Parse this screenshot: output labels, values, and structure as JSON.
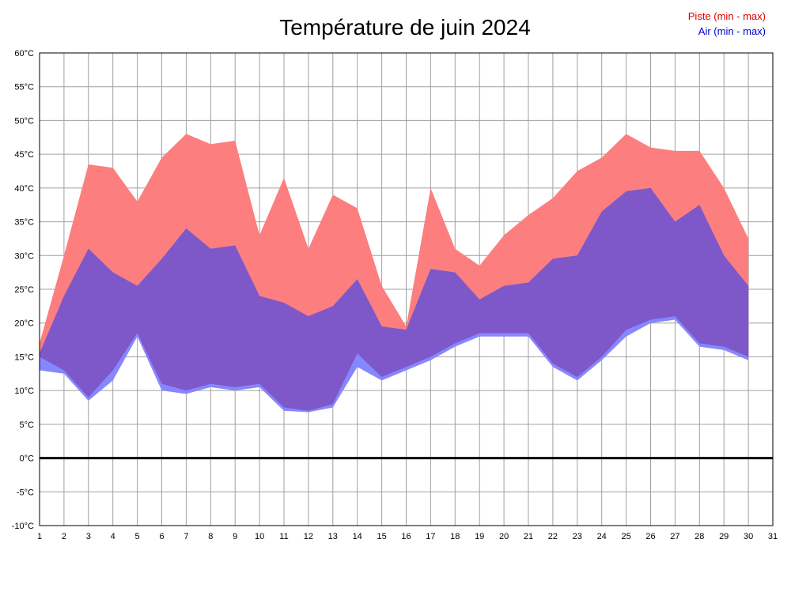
{
  "title": "Température de juin 2024",
  "legend": {
    "piste_label": "Piste (min - max)",
    "air_label": "Air (min - max)",
    "piste_text_color": "#dd0000",
    "air_text_color": "#0000cc"
  },
  "colors": {
    "piste_fill": "#fc7e7e",
    "air_fill": "#8686ff",
    "overlap_fill": "#7e57c8",
    "grid": "#a0a0a0",
    "border": "#000000",
    "zero_line": "#000000",
    "axis_text": "#000000",
    "background": "#ffffff"
  },
  "chart_data": {
    "type": "area",
    "title": "Température de juin 2024",
    "grid": true,
    "legend_position": "top-right",
    "xlim": [
      1,
      31
    ],
    "ylim": [
      -10,
      60
    ],
    "x": [
      1,
      2,
      3,
      4,
      5,
      6,
      7,
      8,
      9,
      10,
      11,
      12,
      13,
      14,
      15,
      16,
      17,
      18,
      19,
      20,
      21,
      22,
      23,
      24,
      25,
      26,
      27,
      28,
      29,
      30
    ],
    "x_ticks": [
      "1",
      "2",
      "3",
      "4",
      "5",
      "6",
      "7",
      "8",
      "9",
      "10",
      "11",
      "12",
      "13",
      "14",
      "15",
      "16",
      "17",
      "18",
      "19",
      "20",
      "21",
      "22",
      "23",
      "24",
      "25",
      "26",
      "27",
      "28",
      "29",
      "30",
      "31"
    ],
    "y_ticks": [
      "60°C",
      "55°C",
      "50°C",
      "45°C",
      "40°C",
      "35°C",
      "30°C",
      "25°C",
      "20°C",
      "15°C",
      "10°C",
      "5°C",
      "0°C",
      "-5°C",
      "-10°C"
    ],
    "series": [
      {
        "name": "Piste max",
        "values": [
          17,
          30,
          43.5,
          43,
          38,
          44.5,
          48,
          46.5,
          47,
          33,
          41.5,
          31,
          39,
          37,
          25.5,
          19.5,
          40,
          31,
          28.5,
          33,
          36,
          38.5,
          42.5,
          44.5,
          48,
          46,
          45.5,
          45.5,
          40,
          32.5
        ]
      },
      {
        "name": "Piste min",
        "values": [
          15,
          13,
          9,
          13,
          18.5,
          11,
          10,
          11,
          10.5,
          11,
          7.5,
          7,
          8,
          15.5,
          12,
          13.5,
          15,
          17,
          18.5,
          18.5,
          18.5,
          14,
          12,
          15,
          19,
          20.5,
          21,
          17,
          16.5,
          15
        ]
      },
      {
        "name": "Air max",
        "values": [
          15.5,
          24,
          31,
          27.5,
          25.5,
          29.5,
          34,
          31,
          31.5,
          24,
          23,
          21,
          22.5,
          26.5,
          19.5,
          19,
          28,
          27.5,
          23.5,
          25.5,
          26,
          29.5,
          30,
          36.5,
          39.5,
          40,
          35,
          37.5,
          30,
          25.5
        ]
      },
      {
        "name": "Air min",
        "values": [
          13,
          12.5,
          8.5,
          11.5,
          18,
          10,
          9.5,
          10.5,
          10,
          10.5,
          7,
          6.8,
          7.5,
          13.5,
          11.5,
          13,
          14.5,
          16.5,
          18,
          18,
          18,
          13.5,
          11.5,
          14.5,
          18,
          20,
          20.5,
          16.5,
          16,
          14.5
        ]
      }
    ]
  }
}
